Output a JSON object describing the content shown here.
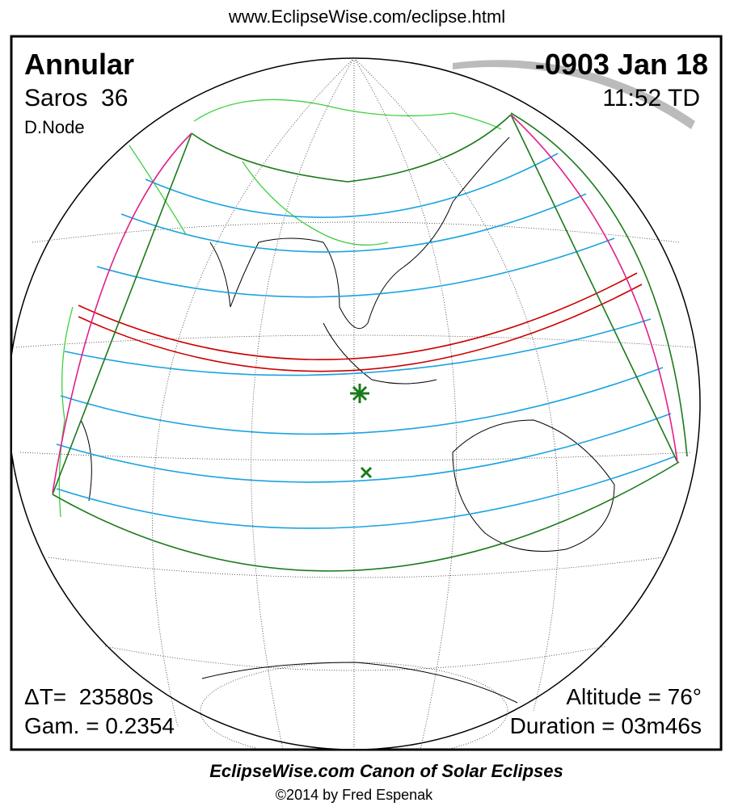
{
  "header": {
    "url": "www.EclipseWise.com/eclipse.html"
  },
  "eclipse": {
    "type": "Annular",
    "saros": "Saros  36",
    "node": "D.Node",
    "date": "-0903 Jan 18",
    "time": "11:52 TD",
    "delta_t": "ΔT=  23580s",
    "gamma": "Gam. = 0.2354",
    "altitude": "Altitude = 76°",
    "duration": "Duration = 03m46s"
  },
  "footer": {
    "title": "EclipseWise.com Canon of Solar Eclipses",
    "copyright": "©2014 by Fred Espenak"
  }
}
